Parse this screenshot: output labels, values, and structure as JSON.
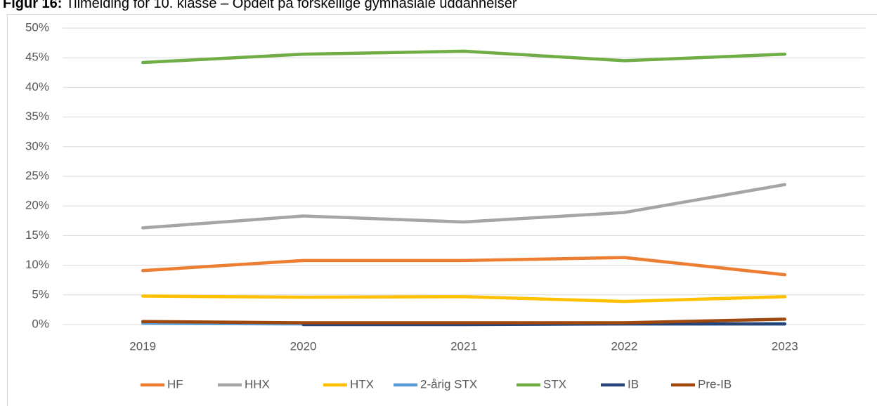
{
  "chart_data": {
    "type": "line",
    "title_prefix": "Figur 16:",
    "title": "Tilmelding for 10. klasse – Opdelt på forskellige gymnasiale uddannelser",
    "categories": [
      "2019",
      "2020",
      "2021",
      "2022",
      "2023"
    ],
    "series": [
      {
        "name": "HF",
        "color": "#ed7d31",
        "values": [
          9.1,
          10.8,
          10.8,
          11.3,
          8.4
        ]
      },
      {
        "name": "HHX",
        "color": "#a5a5a5",
        "values": [
          16.3,
          18.3,
          17.3,
          18.9,
          23.6
        ]
      },
      {
        "name": "HTX",
        "color": "#ffc000",
        "values": [
          4.8,
          4.6,
          4.7,
          3.9,
          4.7
        ]
      },
      {
        "name": "2-årig STX",
        "color": "#5b9bd5",
        "values": [
          0.2,
          0.1,
          0.1,
          0.1,
          0.1
        ]
      },
      {
        "name": "STX",
        "color": "#70ad47",
        "values": [
          44.2,
          45.6,
          46.1,
          44.5,
          45.6
        ]
      },
      {
        "name": "IB",
        "color": "#264478",
        "values": [
          null,
          0,
          0,
          0.1,
          0.1
        ]
      },
      {
        "name": "Pre-IB",
        "color": "#9e480e",
        "values": [
          0.5,
          0.3,
          0.3,
          0.3,
          0.9
        ]
      }
    ],
    "ylim": [
      0,
      50
    ],
    "yticks": [
      {
        "value": 0,
        "label": "0%"
      },
      {
        "value": 5,
        "label": "5%"
      },
      {
        "value": 10,
        "label": "10%"
      },
      {
        "value": 15,
        "label": "15%"
      },
      {
        "value": 20,
        "label": "20%"
      },
      {
        "value": 25,
        "label": "25%"
      },
      {
        "value": 30,
        "label": "30%"
      },
      {
        "value": 35,
        "label": "35%"
      },
      {
        "value": 40,
        "label": "40%"
      },
      {
        "value": 45,
        "label": "45%"
      },
      {
        "value": 50,
        "label": "50%"
      }
    ],
    "grid": true,
    "legend": "bottom"
  }
}
